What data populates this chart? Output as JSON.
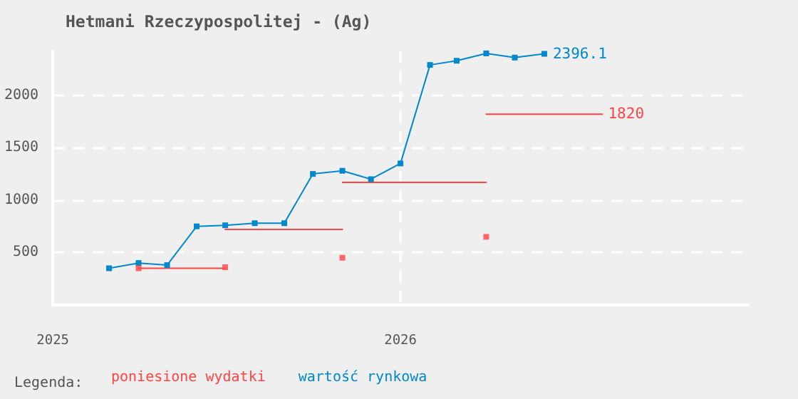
{
  "chart_data": {
    "type": "line",
    "title": "Hetmani Rzeczypospolitej - (Ag)",
    "legend_title": "Legenda:",
    "xlim": [
      "2025-01-01",
      "2027-01-01"
    ],
    "xticks": [
      "2025",
      "2026"
    ],
    "ylim": [
      0,
      2420
    ],
    "yticks": [
      500,
      1000,
      1500,
      2000
    ],
    "grid": true,
    "legend": "bottom",
    "series": [
      {
        "name": "poniesione wydatki",
        "color": "#ff4444",
        "marker": "none",
        "x": [
          "2025-04",
          "2025-07"
        ],
        "values": [
          350,
          350
        ]
      },
      {
        "color": "#ff4444",
        "marker": "none",
        "x": [
          "2025-07",
          "2025-11"
        ],
        "values": [
          720,
          720
        ]
      },
      {
        "color": "#ff4444",
        "marker": "none",
        "x": [
          "2025-11",
          "2026-04"
        ],
        "values": [
          1170,
          1170
        ]
      },
      {
        "color": "#ff4444",
        "marker": "none",
        "x": [
          "2026-04",
          "2026-08"
        ],
        "values": [
          1820,
          1820
        ],
        "value_labels": [
          null,
          "1820"
        ]
      },
      {
        "type": "scatter",
        "color": "#ff4444",
        "marker": "square",
        "x": [
          "2025-04",
          "2025-07",
          "2025-11",
          "2026-04"
        ],
        "values": [
          350,
          360,
          450,
          650
        ]
      },
      {
        "name": "wartość rynkowa",
        "color": "#0088cc",
        "marker": "square",
        "x": [
          "2025-03",
          "2025-04",
          "2025-05",
          "2025-06",
          "2025-07",
          "2025-08",
          "2025-09",
          "2025-10",
          "2025-11",
          "2025-12",
          "2026-01",
          "2026-02",
          "2026-03",
          "2026-04",
          "2026-05",
          "2026-06"
        ],
        "values": [
          350,
          400,
          380,
          750,
          760,
          780,
          780,
          1250,
          1280,
          1200,
          1350,
          2290,
          2330,
          2400,
          2360,
          2396.1
        ],
        "value_labels": [
          null,
          null,
          null,
          null,
          null,
          null,
          null,
          null,
          null,
          null,
          null,
          null,
          null,
          null,
          null,
          "2396.1"
        ]
      }
    ]
  }
}
